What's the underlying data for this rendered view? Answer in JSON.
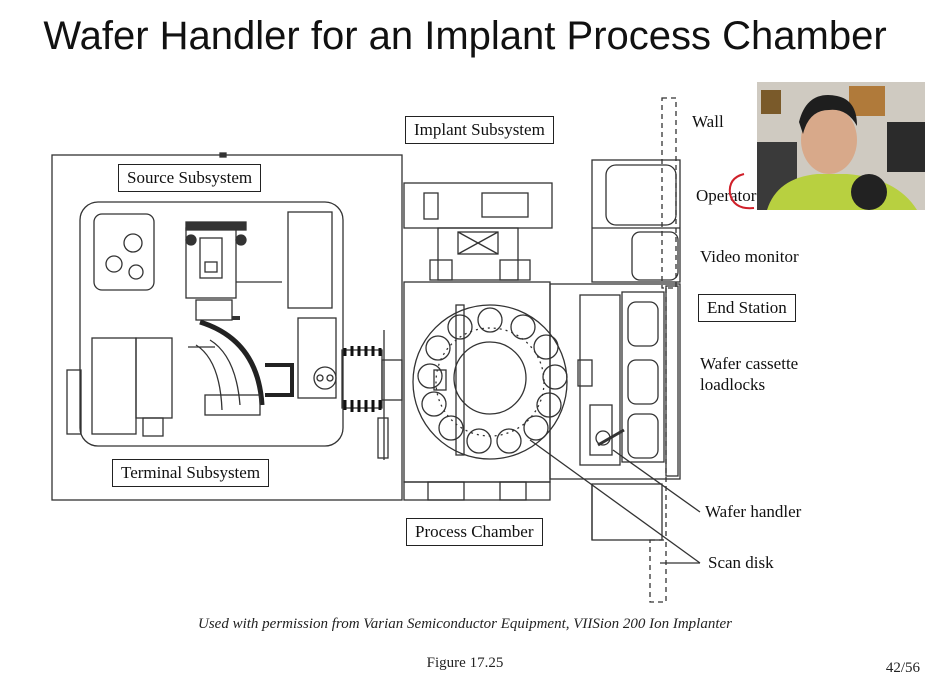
{
  "slide": {
    "title": "Wafer Handler for an Implant Process Chamber",
    "caption": "Used with permission from Varian Semiconductor Equipment, VIISion 200 Ion Implanter",
    "figure": "Figure 17.25",
    "page": "42/56"
  },
  "labels": {
    "implant_subsystem": "Implant Subsystem",
    "source_subsystem": "Source Subsystem",
    "terminal_subsystem": "Terminal Subsystem",
    "process_chamber": "Process Chamber",
    "end_station": "End Station",
    "wall": "Wall",
    "operator": "Operator",
    "video_monitor": "Video monitor",
    "wafer_cassette_line1": "Wafer cassette",
    "wafer_cassette_line2": "loadlocks",
    "wafer_handler": "Wafer handler",
    "scan_disk": "Scan disk"
  }
}
